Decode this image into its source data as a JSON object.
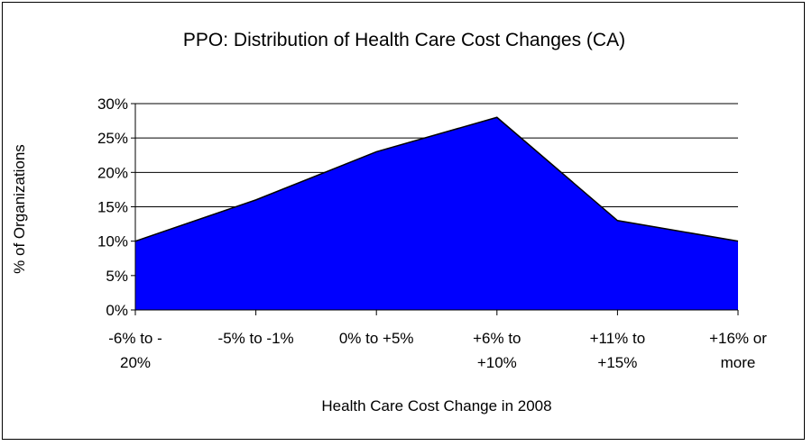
{
  "chart_data": {
    "type": "area",
    "title": "PPO: Distribution of Health Care Cost Changes (CA)",
    "xlabel": "Health Care Cost Change in 2008",
    "ylabel": "% of Organizations",
    "categories": [
      [
        "-6% to -",
        "20%"
      ],
      [
        "-5% to -1%"
      ],
      [
        "0% to +5%"
      ],
      [
        "+6% to",
        "+10%"
      ],
      [
        "+11% to",
        "+15%"
      ],
      [
        "+16% or",
        "more"
      ]
    ],
    "values": [
      10,
      16,
      23,
      28,
      13,
      10
    ],
    "ylim": [
      0,
      30
    ],
    "yticks": [
      "0%",
      "5%",
      "10%",
      "15%",
      "20%",
      "25%",
      "30%"
    ],
    "grid": true,
    "fill_color": "#0000FF",
    "line_color": "#000000"
  }
}
